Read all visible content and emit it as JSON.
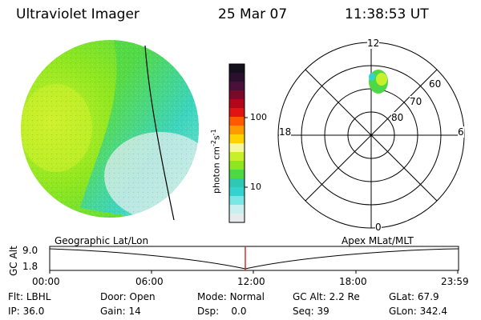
{
  "header": {
    "instrument": "Ultraviolet Imager",
    "date": "25 Mar 07",
    "time": "11:38:53 UT"
  },
  "colorbar": {
    "unit_label": "photon cm",
    "unit_exp1": "-2",
    "unit_s": "s",
    "unit_exp2": "-1",
    "ticks": [
      "100",
      "10"
    ],
    "colors": [
      "#14101e",
      "#2a0f2e",
      "#4a0f3a",
      "#7a0a2a",
      "#b0081a",
      "#e01414",
      "#ff5a00",
      "#ff9a00",
      "#ffd200",
      "#f4f7a0",
      "#c8f02a",
      "#8ee61e",
      "#4ed846",
      "#2ec8b4",
      "#36d2d2",
      "#7ae6e6",
      "#c8f0f0",
      "#e6ecec"
    ]
  },
  "polar": {
    "mlt_labels": [
      "12",
      "18",
      "6",
      "0"
    ],
    "mlat_labels": [
      "60",
      "70",
      "80"
    ]
  },
  "timeline": {
    "left_label": "Geographic Lat/Lon",
    "right_label": "Apex MLat/MLT",
    "axis_label": "GC Alt",
    "y_ticks": [
      "9.0",
      "1.8"
    ],
    "x_ticks": [
      "00:00",
      "06:00",
      "12:00",
      "18:00",
      "23:59"
    ],
    "current_marker_color": "#d42020"
  },
  "status": {
    "flt_label": "Flt:",
    "flt_value": "LBHL",
    "ip_label": "IP:",
    "ip_value": "36.0",
    "door_label": "Door:",
    "door_value": "Open",
    "gain_label": "Gain:",
    "gain_value": "14",
    "mode_label": "Mode:",
    "mode_value": "Normal",
    "dsp_label": "Dsp:",
    "dsp_value": "0.0",
    "gcalt_label": "GC Alt:",
    "gcalt_value": "2.2 Re",
    "seq_label": "Seq:",
    "seq_value": "39",
    "glat_label": "GLat:",
    "glat_value": "67.9",
    "glon_label": "GLon:",
    "glon_value": "342.4"
  }
}
